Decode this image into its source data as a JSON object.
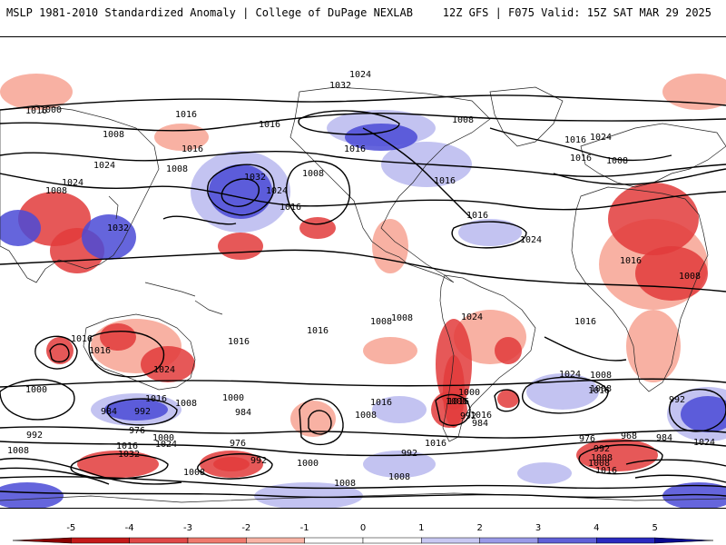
{
  "header": {
    "left_title": "MSLP 1981-2010 Standardized Anomaly | College of DuPage NEXLAB",
    "right_title": "12Z GFS | F075 Valid: 15Z SAT MAR 29 2025"
  },
  "colorbar": {
    "ticks": [
      "-5",
      "-4",
      "-3",
      "-2",
      "-1",
      "0",
      "1",
      "2",
      "3",
      "4",
      "5"
    ],
    "colors": [
      "#8b0000",
      "#c41a1a",
      "#e04848",
      "#ef7a6e",
      "#f9b4a6",
      "#ffffff",
      "#ffffff",
      "#c8c8f2",
      "#9a9ae8",
      "#6060d8",
      "#2a2ac0",
      "#0a0a90"
    ]
  },
  "map": {
    "colors": {
      "strong_positive": "#e23b3b",
      "weak_positive": "#f7a393",
      "weak_negative": "#b9b9ee",
      "strong_negative": "#4a4ad6",
      "contour": "#000000",
      "coast": "#222222"
    },
    "isobar_labels": [
      "1024",
      "1032",
      "1016",
      "1000",
      "1016",
      "1008",
      "1016",
      "1008",
      "1016",
      "1032",
      "1024",
      "1024",
      "1008",
      "1016",
      "1008",
      "1024",
      "1016",
      "1016",
      "1032",
      "1016",
      "1024",
      "1008",
      "1016",
      "1024",
      "1016",
      "1008",
      "1016",
      "1008",
      "1016",
      "1024",
      "1016",
      "1008",
      "1016",
      "1024",
      "1016",
      "1016",
      "1016",
      "1024",
      "1016",
      "1008",
      "1000",
      "1000",
      "992",
      "984",
      "976",
      "1008",
      "1032",
      "1016",
      "1024",
      "1000",
      "984",
      "976",
      "992",
      "1016",
      "1000",
      "1016",
      "1008",
      "1000",
      "1008",
      "1000",
      "1008",
      "992",
      "984",
      "992",
      "1008",
      "1008",
      "992",
      "976",
      "968",
      "992",
      "984",
      "1024",
      "1008",
      "1016",
      "1008",
      "1016",
      "1008",
      "1016",
      "1008",
      "992"
    ]
  }
}
